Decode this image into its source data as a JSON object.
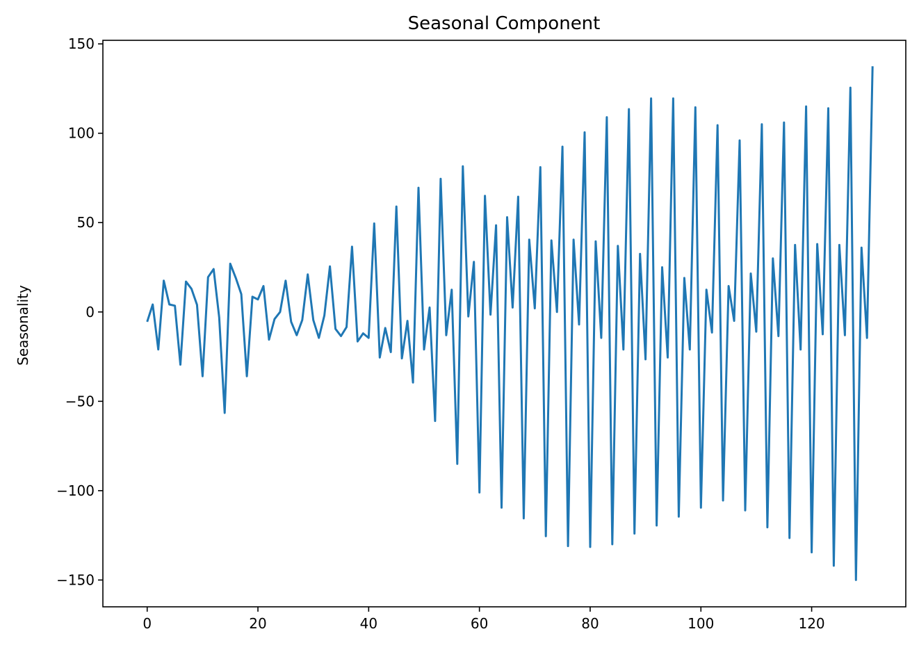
{
  "chart_data": {
    "type": "line",
    "title": "Seasonal Component",
    "xlabel": "",
    "ylabel": "Seasonality",
    "xlim": [
      -8,
      137
    ],
    "ylim": [
      -165,
      152
    ],
    "x_ticks": [
      0,
      20,
      40,
      60,
      80,
      100,
      120
    ],
    "x_tick_labels": [
      "0",
      "20",
      "40",
      "60",
      "80",
      "100",
      "120"
    ],
    "y_ticks": [
      150,
      100,
      50,
      0,
      -50,
      -100,
      -150
    ],
    "y_tick_labels": [
      "150",
      "100",
      "50",
      "0",
      "−50",
      "−100",
      "−150"
    ],
    "grid": false,
    "color": "#1f77b4",
    "series": [
      {
        "x": [
          0,
          1,
          2,
          3,
          4,
          5,
          6,
          7,
          8,
          9,
          10,
          11,
          12,
          13,
          14,
          15,
          16,
          17,
          18,
          19,
          20,
          21,
          22,
          23,
          24,
          25,
          26,
          27,
          28,
          29,
          30,
          31,
          32,
          33,
          34,
          35,
          36,
          37,
          38,
          39,
          40,
          41,
          42,
          43,
          44,
          45,
          46,
          47,
          48,
          49,
          50,
          51,
          52,
          53,
          54,
          55,
          56,
          57,
          58,
          59,
          60,
          61,
          62,
          63,
          64,
          65,
          66,
          67,
          68,
          69,
          70,
          71,
          72,
          73,
          74,
          75,
          76,
          77,
          78,
          79,
          80,
          81,
          82,
          83,
          84,
          85,
          86,
          87,
          88,
          89,
          90,
          91,
          92,
          93,
          94,
          95,
          96,
          97,
          98,
          99,
          100,
          101,
          102,
          103,
          104,
          105,
          106,
          107,
          108,
          109,
          110,
          111,
          112,
          113,
          114,
          115,
          116,
          117,
          118,
          119,
          120,
          121,
          122,
          123,
          124,
          125,
          126,
          127,
          128,
          129,
          130,
          131
        ],
        "values": [
          -5.5,
          4.2,
          -21,
          17.5,
          4.2,
          3.5,
          -29.5,
          17,
          13,
          4,
          -36,
          19.5,
          24,
          -3,
          -56.5,
          27,
          19,
          10,
          -36,
          8.5,
          7,
          14.5,
          -15.5,
          -4,
          0,
          17.5,
          -5.5,
          -13,
          -4.5,
          21,
          -4.5,
          -14.5,
          -2,
          25.5,
          -9.5,
          -13.5,
          -8.5,
          36.5,
          -16.5,
          -12,
          -14.5,
          49.5,
          -25.5,
          -9,
          -22.5,
          59,
          -26,
          -5,
          -39.5,
          69.5,
          -21,
          2.5,
          -61,
          74.5,
          -13,
          12.5,
          -85,
          81.5,
          -2.5,
          28,
          -101,
          65,
          -1.5,
          48.5,
          -109.5,
          53,
          2.5,
          64.5,
          -115.5,
          40.5,
          2,
          81,
          -125.5,
          40,
          0,
          92.5,
          -131,
          40.5,
          -7,
          100.5,
          -131.5,
          39.5,
          -14.5,
          109,
          -130,
          37,
          -21,
          113.5,
          -124,
          32.5,
          -26.5,
          119.5,
          -119.5,
          25,
          -25.5,
          119.5,
          -114.5,
          19,
          -21,
          114.5,
          -109.5,
          12.5,
          -11.5,
          104.5,
          -105.5,
          14.5,
          -5,
          96,
          -111,
          21.5,
          -11,
          105,
          -120.5,
          30,
          -13.5,
          106,
          -126.5,
          37.5,
          -21,
          115,
          -134.5,
          38,
          -12.5,
          114,
          -142,
          37.5,
          -13,
          125.5,
          -150,
          36,
          -14.5,
          137.5
        ]
      }
    ]
  }
}
